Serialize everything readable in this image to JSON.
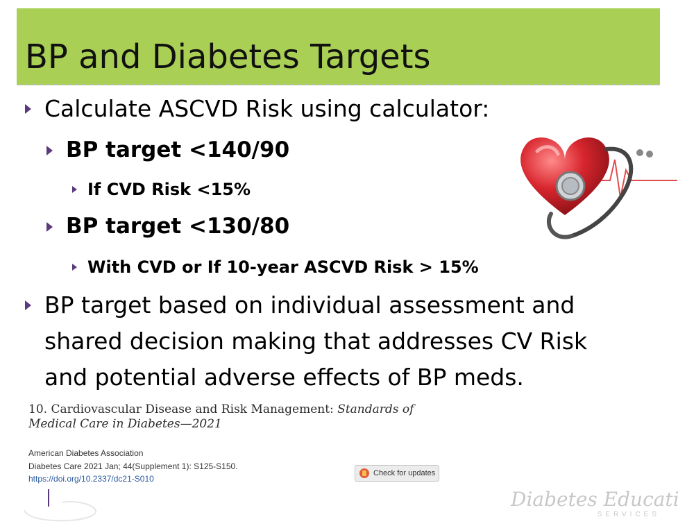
{
  "slide": {
    "title": "BP and Diabetes Targets",
    "bullets": {
      "b1": "Calculate ASCVD Risk using calculator:",
      "b1_1": "BP target <140/90",
      "b1_1_1": "If CVD Risk <15%",
      "b1_2": "BP target <130/80",
      "b1_2_1": "With CVD or If 10-year ASCVD Risk > 15%",
      "b2_line1": "BP target based on individual assessment and",
      "b2_line2": "shared decision making that addresses CV Risk",
      "b2_line3": "and potential adverse effects of BP meds."
    },
    "reference": {
      "title_plain": "10. Cardiovascular Disease and Risk Management: ",
      "title_italic_1": "Standards of",
      "title_italic_2": "Medical Care in Diabetes—2021",
      "author": "American Diabetes Association",
      "citation": "Diabetes Care 2021 Jan; 44(Supplement 1): S125-S150.",
      "doi": "https://doi.org/10.2337/dc21-S010",
      "check_button": "Check for updates"
    },
    "logo": {
      "main": "Diabetes Education",
      "sub": "SERVICES"
    },
    "colors": {
      "title_bar": "#a9cf54",
      "bullet_arrow": "#5a3a7a",
      "heart": "#d8262e"
    },
    "icons": {
      "illustration": "heart-stethoscope-icon",
      "bullet": "triangle-arrow-icon"
    }
  }
}
